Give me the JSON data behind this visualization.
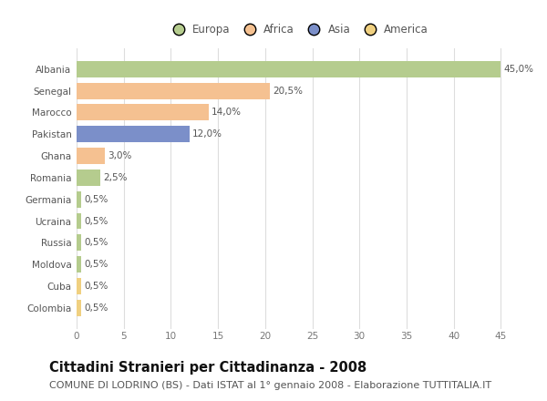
{
  "categories": [
    "Albania",
    "Senegal",
    "Marocco",
    "Pakistan",
    "Ghana",
    "Romania",
    "Germania",
    "Ucraina",
    "Russia",
    "Moldova",
    "Cuba",
    "Colombia"
  ],
  "values": [
    45.0,
    20.5,
    14.0,
    12.0,
    3.0,
    2.5,
    0.5,
    0.5,
    0.5,
    0.5,
    0.5,
    0.5
  ],
  "labels": [
    "45,0%",
    "20,5%",
    "14,0%",
    "12,0%",
    "3,0%",
    "2,5%",
    "0,5%",
    "0,5%",
    "0,5%",
    "0,5%",
    "0,5%",
    "0,5%"
  ],
  "colors": [
    "#b5cc8e",
    "#f5c191",
    "#f5c191",
    "#7b8fc9",
    "#f5c191",
    "#b5cc8e",
    "#b5cc8e",
    "#b5cc8e",
    "#b5cc8e",
    "#b5cc8e",
    "#f0d080",
    "#f0d080"
  ],
  "legend_labels": [
    "Europa",
    "Africa",
    "Asia",
    "America"
  ],
  "legend_colors": [
    "#b5cc8e",
    "#f5c191",
    "#7b8fc9",
    "#f0d080"
  ],
  "xlim": [
    0,
    47
  ],
  "xticks": [
    0,
    5,
    10,
    15,
    20,
    25,
    30,
    35,
    40,
    45
  ],
  "title": "Cittadini Stranieri per Cittadinanza - 2008",
  "subtitle": "COMUNE DI LODRINO (BS) - Dati ISTAT al 1° gennaio 2008 - Elaborazione TUTTITALIA.IT",
  "bg_color": "#ffffff",
  "bar_height": 0.75,
  "title_fontsize": 10.5,
  "subtitle_fontsize": 8,
  "label_fontsize": 7.5,
  "tick_fontsize": 7.5,
  "legend_fontsize": 8.5
}
